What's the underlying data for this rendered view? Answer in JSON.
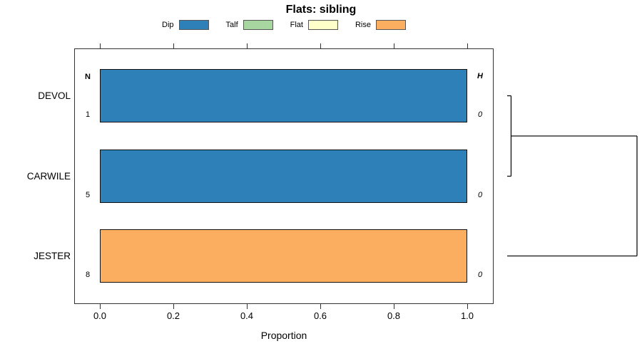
{
  "chart_data": {
    "type": "bar",
    "orientation": "horizontal",
    "stacked": true,
    "title": "Flats: sibling",
    "xlabel": "Proportion",
    "xlim": [
      0,
      1
    ],
    "x_ticks": [
      "0.0",
      "0.2",
      "0.4",
      "0.6",
      "0.8",
      "1.0"
    ],
    "x_tick_values": [
      0.0,
      0.2,
      0.4,
      0.6,
      0.8,
      1.0
    ],
    "grid": false,
    "legend_position": "top",
    "columns": {
      "left": "N",
      "right": "H"
    },
    "legend": [
      {
        "label": "Dip",
        "color": "#2D81B8"
      },
      {
        "label": "Talf",
        "color": "#A8D6A0"
      },
      {
        "label": "Flat",
        "color": "#FFFFC9"
      },
      {
        "label": "Rise",
        "color": "#FBAD60"
      }
    ],
    "rows": [
      {
        "label": "DEVOL",
        "n": "1",
        "h": "0",
        "segments": [
          {
            "category": "Dip",
            "value": 1.0
          }
        ]
      },
      {
        "label": "CARWILE",
        "n": "5",
        "h": "0",
        "segments": [
          {
            "category": "Dip",
            "value": 1.0
          }
        ]
      },
      {
        "label": "JESTER",
        "n": "8",
        "h": "0",
        "segments": [
          {
            "category": "Rise",
            "value": 1.0
          }
        ]
      }
    ],
    "dendrogram": {
      "side": "right",
      "tree": {
        "height": 1.0,
        "children": [
          {
            "height": 0.03,
            "children": [
              {
                "leaf": "DEVOL"
              },
              {
                "leaf": "CARWILE"
              }
            ]
          },
          {
            "leaf": "JESTER"
          }
        ]
      }
    }
  }
}
